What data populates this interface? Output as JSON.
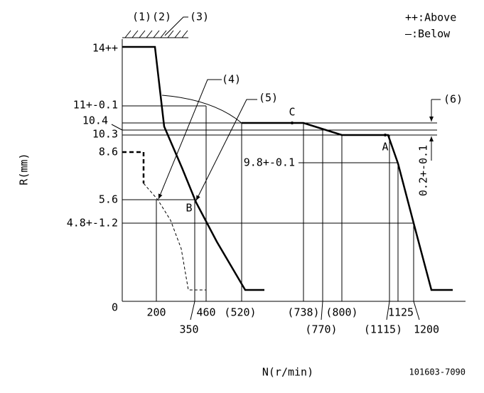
{
  "callouts": {
    "c1": "(1)",
    "c2": "(2)",
    "c3": "(3)",
    "c4": "(4)",
    "c5": "(5)",
    "c6": "(6)"
  },
  "legend": {
    "above": "++:Above",
    "below": "—:Below"
  },
  "y_labels": [
    "14++",
    "11+-0.1",
    "10.4",
    "10.3",
    "8.6",
    "5.6",
    "4.8+-1.2",
    "0"
  ],
  "x_labels": [
    "200",
    "350",
    "460",
    "(520)",
    "(738)",
    "(770)",
    "(800)",
    "(1115)",
    "1125",
    "1200"
  ],
  "points": {
    "a": "A",
    "b": "B",
    "c": "C"
  },
  "annotations": {
    "right_value": "9.8+-0.1",
    "offset": "0.2+-0.1"
  },
  "axes": {
    "y_title": "R(mm)",
    "x_title": "N(r/min)"
  },
  "code": "101603-7090"
}
